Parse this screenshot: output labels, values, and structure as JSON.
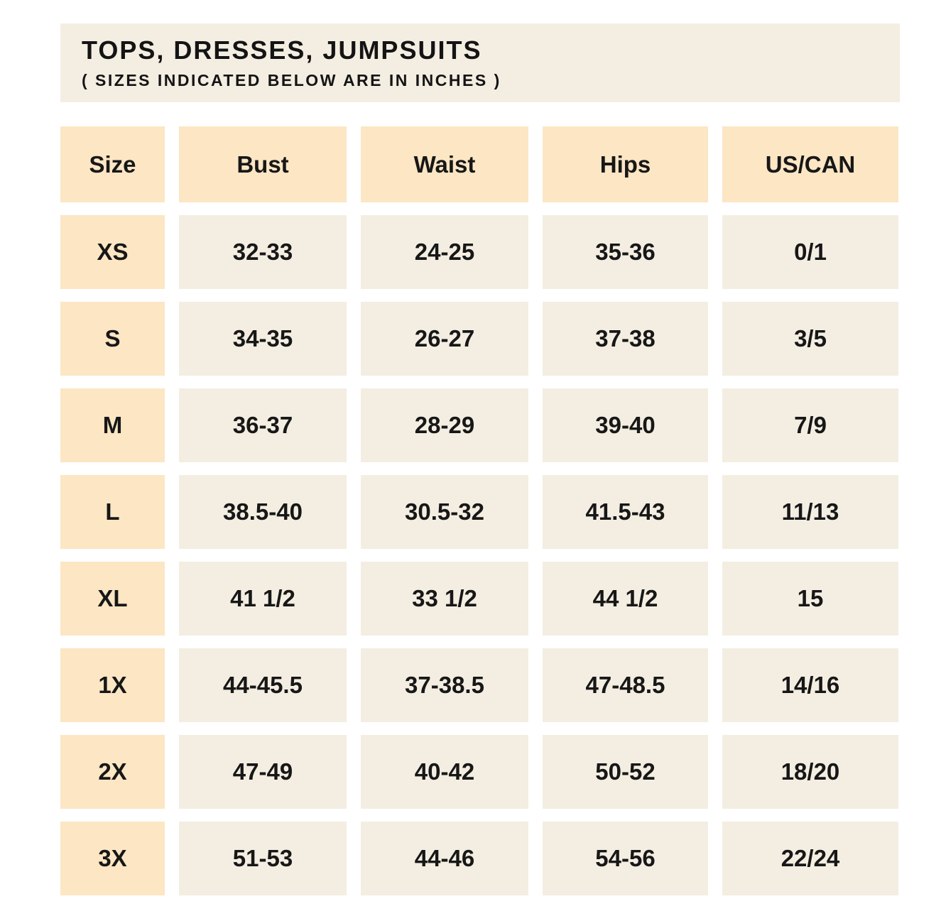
{
  "colors": {
    "page_background": "#FFFFFF",
    "cell_cream": "#F4EEE2",
    "cell_peach": "#FCE6C4",
    "text": "#171717"
  },
  "chart_data": {
    "type": "table",
    "title": "TOPS, DRESSES, JUMPSUITS",
    "subtitle": "( SIZES INDICATED BELOW ARE IN INCHES )",
    "units": "inches",
    "columns": [
      "Size",
      "Bust",
      "Waist",
      "Hips",
      "US/CAN"
    ],
    "rows": [
      [
        "XS",
        "32-33",
        "24-25",
        "35-36",
        "0/1"
      ],
      [
        "S",
        "34-35",
        "26-27",
        "37-38",
        "3/5"
      ],
      [
        "M",
        "36-37",
        "28-29",
        "39-40",
        "7/9"
      ],
      [
        "L",
        "38.5-40",
        "30.5-32",
        "41.5-43",
        "11/13"
      ],
      [
        "XL",
        "41 1/2",
        "33 1/2",
        "44 1/2",
        "15"
      ],
      [
        "1X",
        "44-45.5",
        "37-38.5",
        "47-48.5",
        "14/16"
      ],
      [
        "2X",
        "47-49",
        "40-42",
        "50-52",
        "18/20"
      ],
      [
        "3X",
        "51-53",
        "44-46",
        "54-56",
        "22/24"
      ]
    ]
  }
}
